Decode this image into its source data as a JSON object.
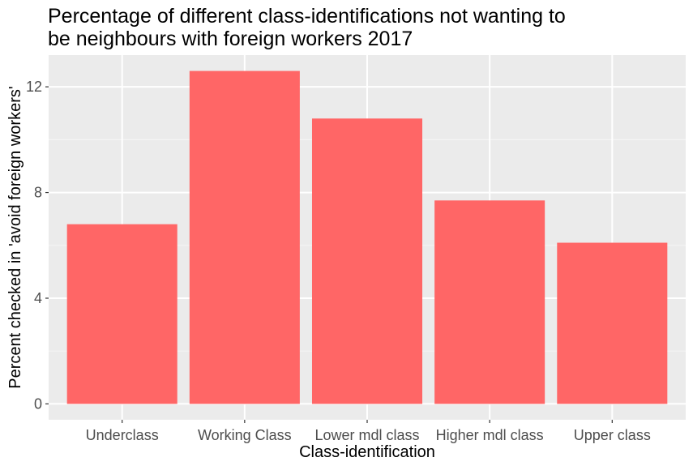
{
  "chart_data": {
    "type": "bar",
    "title_lines": [
      "Percentage of different class-identifications not wanting to",
      "be neighbours with foreign workers 2017"
    ],
    "xlabel": "Class-identification",
    "ylabel": "Percent checked in 'avoid foreign workers'",
    "categories": [
      "Underclass",
      "Working Class",
      "Lower mdl class",
      "Higher mdl class",
      "Upper class"
    ],
    "values": [
      6.8,
      12.6,
      10.8,
      7.7,
      6.1
    ],
    "yticks": [
      0,
      4,
      8,
      12
    ],
    "ylim": [
      -0.6,
      13.2
    ],
    "grid": true,
    "legend": "none",
    "colors": {
      "bar": "#FF6666",
      "panel": "#EBEBEB",
      "grid_major": "#FFFFFF",
      "grid_minor": "#F5F5F5",
      "axis_text": "#4D4D4D",
      "text": "#000000"
    }
  }
}
